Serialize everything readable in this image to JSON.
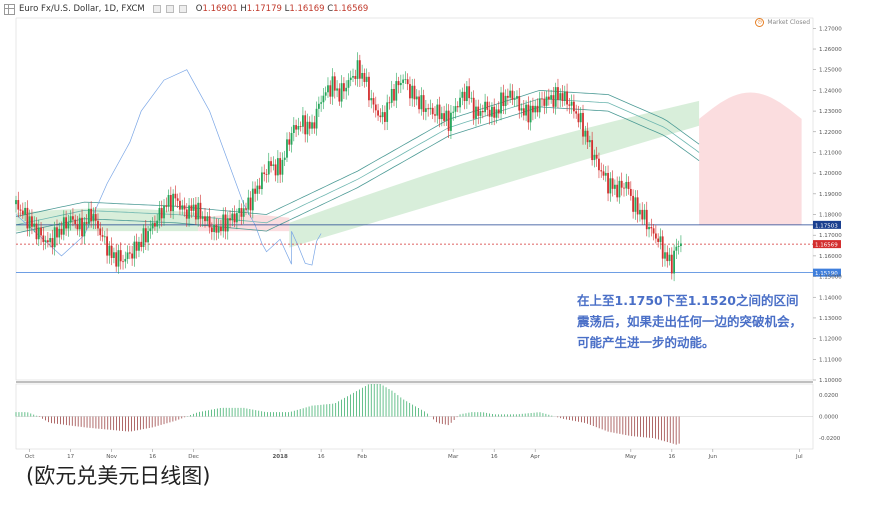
{
  "header": {
    "symbol": "Euro Fx/U.S. Dollar, 1D, FXCM",
    "open_key": "O",
    "open": "1.16901",
    "high_key": "H",
    "high": "1.17179",
    "low_key": "L",
    "low": "1.16169",
    "close_key": "C",
    "close": "1.16569"
  },
  "market_status": "Market Closed",
  "annotation": "在上至1.1750下至1.1520之间的区间震荡后，如果走出任何一边的突破机会，可能产生进一步的动能。",
  "caption": "(欧元兑美元日线图)",
  "colors": {
    "up": "#26a65b",
    "down": "#d32f2f",
    "cloud_green": "#d4ecd6",
    "cloud_red": "#fbd9db",
    "resistance": "#1a3f8f",
    "support": "#3f7fdc",
    "lagging": "#7aa6e6"
  },
  "chart_data": [
    {
      "type": "candlestick",
      "title": "Euro Fx/U.S. Dollar, 1D, FXCM",
      "price_axis": {
        "ticks": [
          "1.27000",
          "1.26000",
          "1.25000",
          "1.24000",
          "1.23000",
          "1.22000",
          "1.21000",
          "1.20000",
          "1.19000",
          "1.18000",
          "1.17000",
          "1.16000",
          "1.15000",
          "1.14000",
          "1.13000",
          "1.12000",
          "1.11000",
          "1.10000"
        ],
        "ylim": [
          1.1,
          1.275
        ]
      },
      "time_axis": {
        "labels": [
          "Oct",
          "17",
          "Nov",
          "16",
          "Dec",
          "2018",
          "16",
          "Feb",
          "Mar",
          "16",
          "Apr",
          "May",
          "16",
          "Jun",
          "Jul"
        ],
        "label_days": [
          12,
          48,
          84,
          120,
          156,
          232,
          268,
          304,
          384,
          420,
          456,
          540,
          576,
          612,
          688
        ]
      },
      "horizontal_levels": [
        {
          "name": "resistance",
          "value": 1.175,
          "label": "1.17503"
        },
        {
          "name": "last_price",
          "value": 1.16569,
          "label": "1.16569"
        },
        {
          "name": "support",
          "value": 1.1519,
          "label": "1.15190"
        }
      ],
      "daily_close_anchors": [
        [
          0,
          1.185
        ],
        [
          10,
          1.178
        ],
        [
          18,
          1.172
        ],
        [
          28,
          1.166
        ],
        [
          38,
          1.172
        ],
        [
          48,
          1.178
        ],
        [
          58,
          1.173
        ],
        [
          66,
          1.181
        ],
        [
          75,
          1.17
        ],
        [
          84,
          1.16
        ],
        [
          94,
          1.158
        ],
        [
          104,
          1.163
        ],
        [
          114,
          1.17
        ],
        [
          122,
          1.176
        ],
        [
          132,
          1.185
        ],
        [
          140,
          1.188
        ],
        [
          148,
          1.181
        ],
        [
          156,
          1.183
        ],
        [
          166,
          1.178
        ],
        [
          174,
          1.172
        ],
        [
          184,
          1.176
        ],
        [
          194,
          1.18
        ],
        [
          202,
          1.183
        ],
        [
          212,
          1.193
        ],
        [
          222,
          1.204
        ],
        [
          232,
          1.202
        ],
        [
          242,
          1.22
        ],
        [
          250,
          1.224
        ],
        [
          260,
          1.222
        ],
        [
          268,
          1.236
        ],
        [
          278,
          1.243
        ],
        [
          284,
          1.238
        ],
        [
          292,
          1.244
        ],
        [
          300,
          1.25
        ],
        [
          306,
          1.246
        ],
        [
          314,
          1.232
        ],
        [
          322,
          1.226
        ],
        [
          330,
          1.238
        ],
        [
          340,
          1.246
        ],
        [
          346,
          1.24
        ],
        [
          356,
          1.233
        ],
        [
          364,
          1.23
        ],
        [
          372,
          1.229
        ],
        [
          380,
          1.225
        ],
        [
          388,
          1.234
        ],
        [
          396,
          1.24
        ],
        [
          404,
          1.228
        ],
        [
          412,
          1.232
        ],
        [
          420,
          1.228
        ],
        [
          428,
          1.236
        ],
        [
          436,
          1.238
        ],
        [
          446,
          1.229
        ],
        [
          454,
          1.23
        ],
        [
          462,
          1.235
        ],
        [
          470,
          1.236
        ],
        [
          478,
          1.238
        ],
        [
          486,
          1.234
        ],
        [
          494,
          1.227
        ],
        [
          500,
          1.219
        ],
        [
          506,
          1.21
        ],
        [
          512,
          1.203
        ],
        [
          520,
          1.195
        ],
        [
          528,
          1.192
        ],
        [
          536,
          1.195
        ],
        [
          542,
          1.185
        ],
        [
          550,
          1.18
        ],
        [
          558,
          1.172
        ],
        [
          564,
          1.168
        ],
        [
          570,
          1.16
        ],
        [
          576,
          1.156
        ],
        [
          580,
          1.164
        ],
        [
          584,
          1.167
        ]
      ],
      "ichimoku_cloud": [
        {
          "color": "green",
          "day_range": [
            0,
            160
          ],
          "span": [
            1.172,
            1.183
          ]
        },
        {
          "color": "red",
          "day_range": [
            160,
            240
          ],
          "span": [
            1.172,
            1.18
          ]
        },
        {
          "color": "green",
          "day_range": [
            240,
            600
          ],
          "span": [
            1.17,
            1.232
          ]
        },
        {
          "color": "red",
          "day_range": [
            600,
            690
          ],
          "span": [
            1.175,
            1.239
          ]
        }
      ],
      "moving_average_ribbon": [
        [
          0,
          1.175
        ],
        [
          60,
          1.182
        ],
        [
          140,
          1.18
        ],
        [
          220,
          1.176
        ],
        [
          300,
          1.197
        ],
        [
          380,
          1.222
        ],
        [
          460,
          1.236
        ],
        [
          520,
          1.234
        ],
        [
          570,
          1.222
        ],
        [
          600,
          1.21
        ]
      ],
      "lagging_span": [
        [
          0,
          1.18
        ],
        [
          20,
          1.17
        ],
        [
          40,
          1.16
        ],
        [
          60,
          1.17
        ],
        [
          80,
          1.195
        ],
        [
          100,
          1.215
        ],
        [
          110,
          1.23
        ],
        [
          130,
          1.245
        ],
        [
          150,
          1.25
        ],
        [
          160,
          1.24
        ],
        [
          170,
          1.23
        ],
        [
          180,
          1.215
        ],
        [
          190,
          1.2
        ],
        [
          200,
          1.185
        ],
        [
          210,
          1.175
        ],
        [
          216,
          1.166
        ],
        [
          220,
          1.162
        ],
        [
          232,
          1.168
        ],
        [
          242,
          1.156
        ]
      ],
      "lagging_span_offset_days": 316
    },
    {
      "type": "bar",
      "name": "MACD histogram",
      "yaxis_ticks": [
        "0.0200",
        "0.0000",
        "-0.0200"
      ],
      "ylim": [
        -0.03,
        0.03
      ],
      "anchors": [
        [
          0,
          0.004
        ],
        [
          10,
          0.004
        ],
        [
          20,
          0.0
        ],
        [
          30,
          -0.006
        ],
        [
          60,
          -0.01
        ],
        [
          80,
          -0.012
        ],
        [
          100,
          -0.014
        ],
        [
          120,
          -0.01
        ],
        [
          140,
          -0.004
        ],
        [
          160,
          0.004
        ],
        [
          180,
          0.008
        ],
        [
          200,
          0.008
        ],
        [
          220,
          0.004
        ],
        [
          240,
          0.004
        ],
        [
          260,
          0.01
        ],
        [
          280,
          0.012
        ],
        [
          290,
          0.018
        ],
        [
          300,
          0.024
        ],
        [
          310,
          0.03
        ],
        [
          320,
          0.03
        ],
        [
          330,
          0.024
        ],
        [
          340,
          0.016
        ],
        [
          350,
          0.01
        ],
        [
          360,
          0.004
        ],
        [
          370,
          -0.006
        ],
        [
          380,
          -0.008
        ],
        [
          390,
          0.002
        ],
        [
          400,
          0.004
        ],
        [
          410,
          0.004
        ],
        [
          420,
          0.002
        ],
        [
          440,
          0.002
        ],
        [
          460,
          0.004
        ],
        [
          480,
          -0.002
        ],
        [
          500,
          -0.006
        ],
        [
          520,
          -0.014
        ],
        [
          540,
          -0.018
        ],
        [
          560,
          -0.02
        ],
        [
          580,
          -0.026
        ],
        [
          585,
          -0.024
        ]
      ]
    }
  ]
}
